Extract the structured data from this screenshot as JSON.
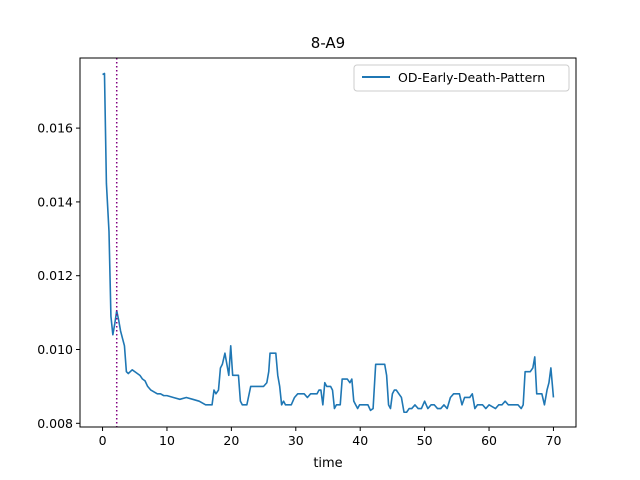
{
  "chart_data": {
    "type": "line",
    "title": "8-A9",
    "xlabel": "time",
    "ylabel": "",
    "xlim": [
      -3.5,
      73.5
    ],
    "ylim": [
      0.0079,
      0.0179
    ],
    "xticks": [
      0,
      10,
      20,
      30,
      40,
      50,
      60,
      70
    ],
    "yticks": [
      0.008,
      0.01,
      0.012,
      0.014,
      0.016
    ],
    "ytick_labels": [
      "0.008",
      "0.010",
      "0.012",
      "0.014",
      "0.016"
    ],
    "grid": false,
    "legend_position": "top-right",
    "vline": {
      "x": 2.2,
      "style": "dotted",
      "color": "#800080"
    },
    "series": [
      {
        "name": "OD-Early-Death-Pattern",
        "color": "#1f77b4",
        "x": [
          0,
          0.3,
          0.6,
          1.0,
          1.3,
          1.6,
          1.9,
          2.2,
          2.5,
          2.8,
          3.1,
          3.4,
          3.7,
          4.0,
          4.3,
          4.6,
          5.0,
          5.4,
          5.8,
          6.2,
          6.6,
          7.0,
          7.5,
          8.0,
          8.5,
          9.0,
          9.5,
          10.0,
          11.0,
          12.0,
          13.0,
          14.0,
          15.0,
          16.0,
          17.0,
          17.3,
          17.6,
          18.0,
          18.3,
          18.6,
          19.0,
          19.3,
          19.6,
          19.9,
          20.2,
          20.5,
          20.8,
          21.1,
          21.4,
          21.7,
          22.0,
          22.4,
          23.0,
          23.3,
          23.6,
          24.0,
          24.5,
          25.0,
          25.5,
          25.8,
          26.0,
          26.3,
          26.6,
          26.9,
          27.2,
          27.5,
          27.8,
          28.1,
          28.4,
          28.8,
          29.3,
          29.8,
          30.3,
          30.8,
          31.3,
          31.8,
          32.3,
          32.8,
          33.3,
          33.6,
          33.9,
          34.2,
          34.5,
          34.8,
          35.1,
          35.4,
          35.7,
          36.0,
          36.3,
          36.6,
          36.9,
          37.2,
          37.6,
          38.0,
          38.4,
          38.7,
          39.0,
          39.3,
          39.6,
          39.9,
          40.2,
          40.5,
          40.8,
          41.2,
          41.6,
          42.0,
          42.4,
          42.8,
          43.2,
          43.5,
          43.8,
          44.1,
          44.4,
          44.7,
          45.0,
          45.3,
          45.6,
          46.0,
          46.4,
          46.8,
          47.2,
          47.6,
          48.0,
          48.5,
          49.0,
          49.5,
          50.0,
          50.5,
          51.0,
          51.5,
          52.0,
          52.5,
          53.0,
          53.5,
          54.0,
          54.5,
          55.0,
          55.4,
          55.8,
          56.2,
          56.6,
          57.0,
          57.4,
          57.8,
          58.2,
          58.6,
          59.0,
          59.5,
          60.0,
          60.5,
          61.0,
          61.5,
          62.0,
          62.5,
          63.0,
          63.5,
          64.0,
          64.5,
          65.0,
          65.3,
          65.6,
          66.0,
          66.4,
          66.8,
          67.1,
          67.4,
          67.8,
          68.2,
          68.6,
          69.0,
          69.3,
          69.6,
          70.0
        ],
        "y": [
          0.01745,
          0.01748,
          0.0145,
          0.0132,
          0.0109,
          0.0104,
          0.0107,
          0.01105,
          0.0108,
          0.0105,
          0.0103,
          0.0101,
          0.0094,
          0.00935,
          0.0094,
          0.00945,
          0.0094,
          0.00935,
          0.0093,
          0.0092,
          0.00915,
          0.009,
          0.0089,
          0.00885,
          0.0088,
          0.0088,
          0.00875,
          0.00875,
          0.0087,
          0.00865,
          0.0087,
          0.00865,
          0.0086,
          0.0085,
          0.0085,
          0.0089,
          0.0088,
          0.0089,
          0.0095,
          0.0096,
          0.0099,
          0.0096,
          0.0093,
          0.0101,
          0.0093,
          0.0093,
          0.0093,
          0.0093,
          0.0086,
          0.0085,
          0.0085,
          0.0085,
          0.009,
          0.009,
          0.009,
          0.009,
          0.009,
          0.009,
          0.0091,
          0.0094,
          0.0099,
          0.0099,
          0.0099,
          0.0099,
          0.0093,
          0.009,
          0.0085,
          0.0086,
          0.0085,
          0.0085,
          0.0085,
          0.0087,
          0.0088,
          0.0088,
          0.0088,
          0.0087,
          0.0088,
          0.0088,
          0.0088,
          0.0089,
          0.0089,
          0.0085,
          0.0091,
          0.009,
          0.009,
          0.009,
          0.0089,
          0.0084,
          0.0085,
          0.0085,
          0.0085,
          0.0092,
          0.0092,
          0.0092,
          0.0091,
          0.0092,
          0.0086,
          0.0085,
          0.0084,
          0.0085,
          0.0085,
          0.0085,
          0.0085,
          0.0085,
          0.00835,
          0.0084,
          0.0096,
          0.0096,
          0.0096,
          0.0096,
          0.0096,
          0.0093,
          0.0085,
          0.0084,
          0.0088,
          0.0089,
          0.0089,
          0.0088,
          0.0087,
          0.0083,
          0.0083,
          0.0084,
          0.0084,
          0.0085,
          0.0084,
          0.0084,
          0.0086,
          0.0084,
          0.0085,
          0.0085,
          0.0084,
          0.0084,
          0.0085,
          0.0084,
          0.0087,
          0.0088,
          0.0088,
          0.0088,
          0.0085,
          0.0087,
          0.0087,
          0.0087,
          0.0088,
          0.0084,
          0.0085,
          0.0085,
          0.0085,
          0.0084,
          0.0085,
          0.00845,
          0.0084,
          0.0085,
          0.0085,
          0.0086,
          0.0085,
          0.0085,
          0.0085,
          0.0085,
          0.0084,
          0.0085,
          0.0094,
          0.0094,
          0.0094,
          0.0095,
          0.0098,
          0.0088,
          0.0088,
          0.0088,
          0.0085,
          0.0089,
          0.0091,
          0.0095,
          0.0087
        ]
      }
    ]
  }
}
